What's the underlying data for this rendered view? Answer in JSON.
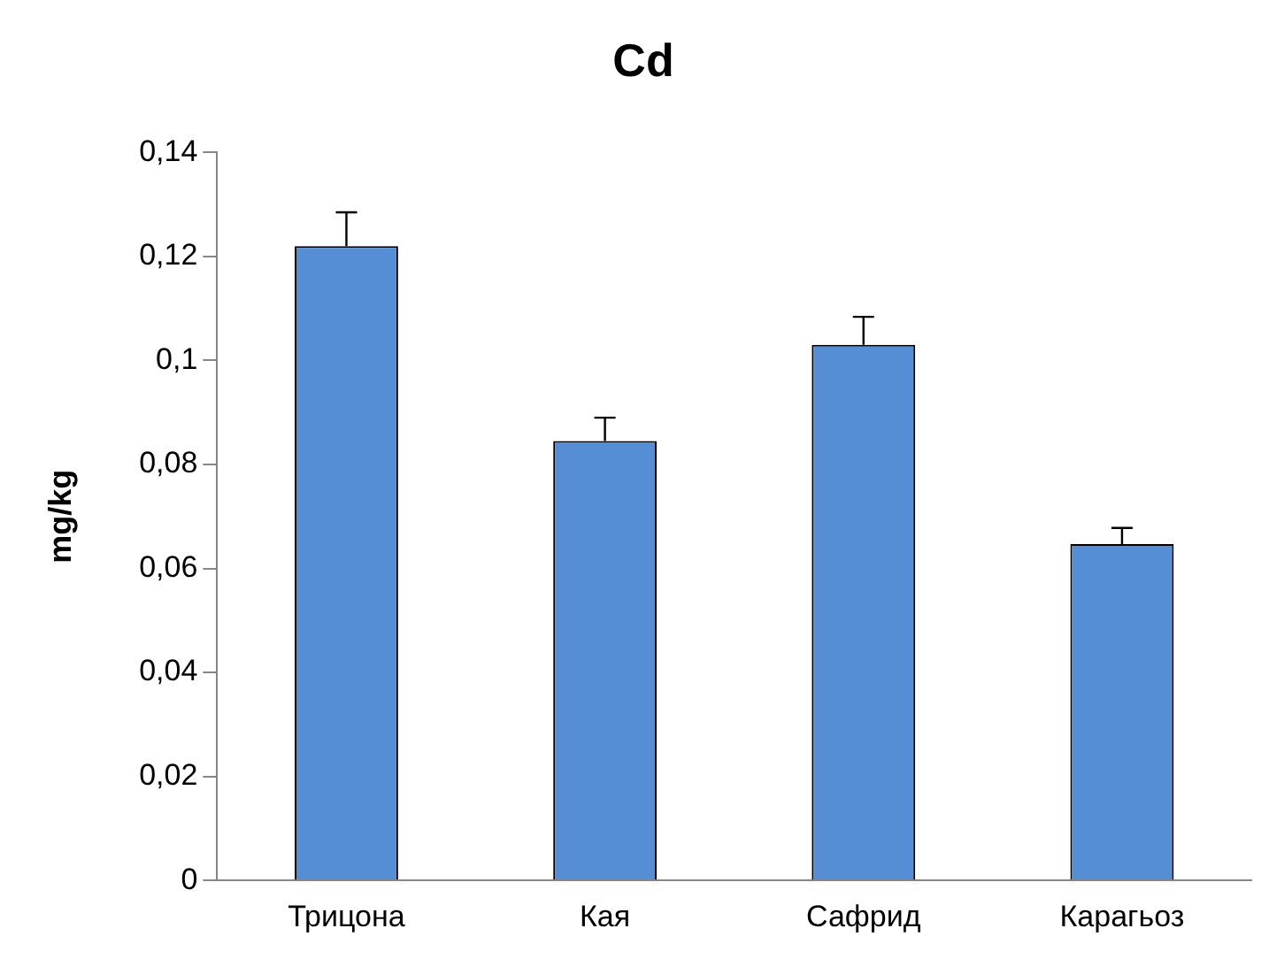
{
  "chart_data": {
    "type": "bar",
    "title": "Cd",
    "ylabel": "mg/kg",
    "categories": [
      "Трицона",
      "Кая",
      "Сафрид",
      "Карагьоз"
    ],
    "values": [
      0.122,
      0.0845,
      0.103,
      0.0647
    ],
    "errors": [
      [
        0.122,
        0.1285
      ],
      [
        0.0845,
        0.089
      ],
      [
        0.103,
        0.1084
      ],
      [
        0.0647,
        0.0678
      ]
    ],
    "color": "#558ed5",
    "ylim": [
      0,
      0.14
    ],
    "yticks": [
      0,
      {
        "value": 0.02,
        "label": "0,02"
      },
      {
        "value": 0.04,
        "label": "0,04"
      },
      {
        "value": 0.06,
        "label": "0,06"
      },
      {
        "value": 0.08,
        "label": "0,08"
      },
      {
        "value": 0.1,
        "label": "0,1"
      },
      {
        "value": 0.12,
        "label": "0,12"
      },
      {
        "value": 0.14,
        "label": "0,14"
      }
    ],
    "grid": false,
    "legend": false
  }
}
